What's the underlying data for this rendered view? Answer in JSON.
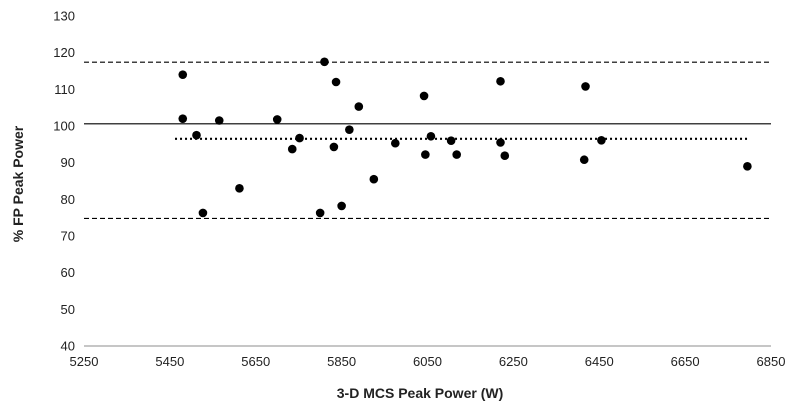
{
  "chart_data": {
    "type": "scatter",
    "title": "",
    "xlabel": "3-D MCS Peak Power (W)",
    "ylabel": "% FP Peak Power",
    "xlim": [
      5250,
      6850
    ],
    "ylim": [
      40,
      130
    ],
    "x_ticks": [
      "5250",
      "5450",
      "5650",
      "5850",
      "6050",
      "6250",
      "6450",
      "6650",
      "6850"
    ],
    "y_ticks": [
      "40",
      "50",
      "60",
      "70",
      "80",
      "90",
      "100",
      "110",
      "120",
      "130"
    ],
    "grid": false,
    "legend": "none",
    "point_color": "#000000",
    "points": [
      {
        "x": 5480,
        "y": 114
      },
      {
        "x": 5480,
        "y": 102
      },
      {
        "x": 5512,
        "y": 97.5
      },
      {
        "x": 5527,
        "y": 76.3
      },
      {
        "x": 5565,
        "y": 101.5
      },
      {
        "x": 5612,
        "y": 83
      },
      {
        "x": 5700,
        "y": 101.8
      },
      {
        "x": 5735,
        "y": 93.7
      },
      {
        "x": 5752,
        "y": 96.7
      },
      {
        "x": 5800,
        "y": 76.3
      },
      {
        "x": 5810,
        "y": 117.5
      },
      {
        "x": 5832,
        "y": 94.3
      },
      {
        "x": 5837,
        "y": 112
      },
      {
        "x": 5850,
        "y": 78.2
      },
      {
        "x": 5868,
        "y": 99
      },
      {
        "x": 5890,
        "y": 105.3
      },
      {
        "x": 5925,
        "y": 85.5
      },
      {
        "x": 5975,
        "y": 95.3
      },
      {
        "x": 6042,
        "y": 108.2
      },
      {
        "x": 6045,
        "y": 92.2
      },
      {
        "x": 6058,
        "y": 97.2
      },
      {
        "x": 6105,
        "y": 96
      },
      {
        "x": 6118,
        "y": 92.2
      },
      {
        "x": 6220,
        "y": 112.2
      },
      {
        "x": 6220,
        "y": 95.5
      },
      {
        "x": 6230,
        "y": 91.9
      },
      {
        "x": 6415,
        "y": 90.8
      },
      {
        "x": 6418,
        "y": 110.8
      },
      {
        "x": 6455,
        "y": 96.1
      },
      {
        "x": 6795,
        "y": 89
      }
    ],
    "reference_lines": [
      {
        "style": "solid",
        "y": 100.6,
        "x_range": [
          5250,
          6850
        ]
      },
      {
        "style": "dotted",
        "y": 96.5,
        "x_range": [
          5462,
          6800
        ]
      },
      {
        "style": "dashed",
        "y": 117.4,
        "x_range": [
          5250,
          6850
        ]
      },
      {
        "style": "dashed",
        "y": 74.8,
        "x_range": [
          5250,
          6850
        ]
      }
    ]
  }
}
